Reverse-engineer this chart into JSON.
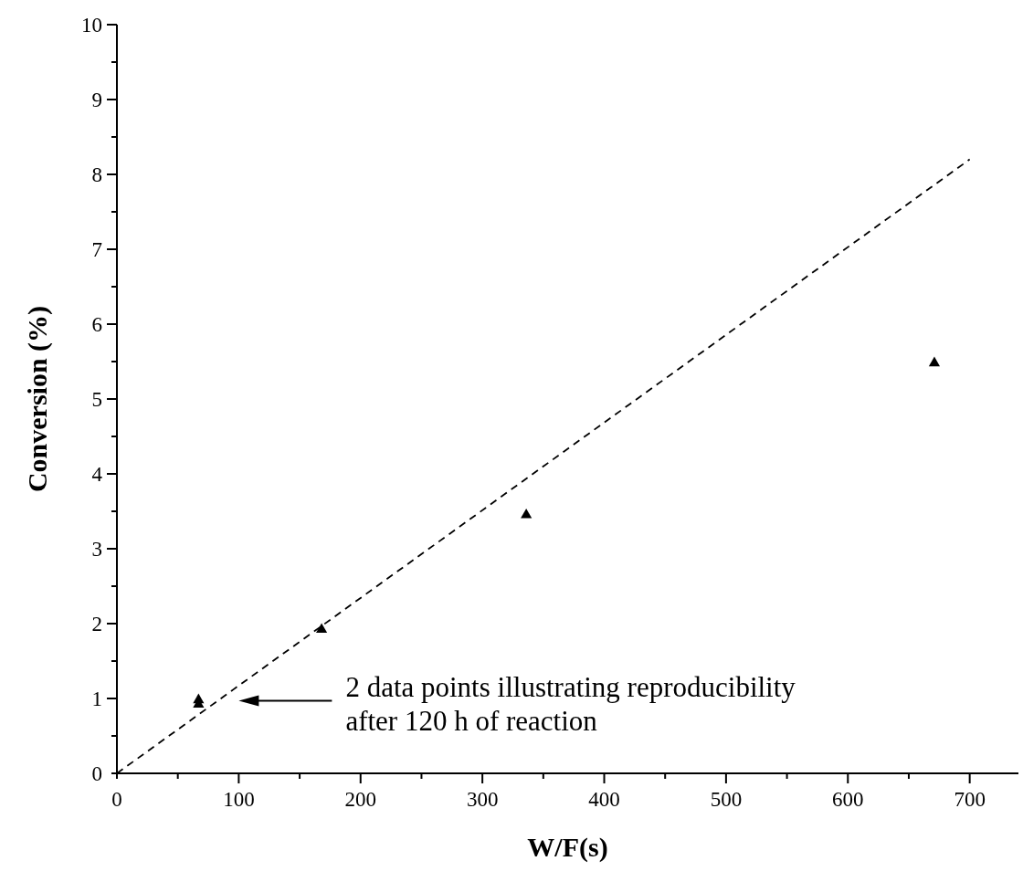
{
  "chart_data": {
    "type": "scatter",
    "xlabel": "W/F(s)",
    "ylabel": "Conversion (%)",
    "xlim": [
      0,
      740
    ],
    "ylim": [
      0,
      10
    ],
    "xticks": [
      0,
      {
        "value": 50,
        "label": null
      },
      100,
      {
        "value": 150,
        "label": null
      },
      200,
      {
        "value": 250,
        "label": null
      },
      300,
      {
        "value": 350,
        "label": null
      },
      400,
      {
        "value": 450,
        "label": null
      },
      500,
      {
        "value": 550,
        "label": null
      },
      600,
      {
        "value": 650,
        "label": null
      },
      700
    ],
    "yticks": [
      0,
      {
        "value": 0.5,
        "label": null
      },
      1,
      {
        "value": 1.5,
        "label": null
      },
      2,
      {
        "value": 2.5,
        "label": null
      },
      3,
      {
        "value": 3.5,
        "label": null
      },
      4,
      {
        "value": 4.5,
        "label": null
      },
      5,
      {
        "value": 5.5,
        "label": null
      },
      6,
      {
        "value": 6.5,
        "label": null
      },
      7,
      {
        "value": 7.5,
        "label": null
      },
      8,
      {
        "value": 8.5,
        "label": null
      },
      9,
      {
        "value": 9.5,
        "label": null
      },
      10
    ],
    "grid": false,
    "legend": false,
    "marker": "triangle",
    "series": [
      {
        "color": "#000000",
        "x": [
          67,
          67,
          168,
          336,
          671
        ],
        "values": [
          0.98,
          0.92,
          1.92,
          3.45,
          5.48
        ]
      },
      {
        "type": "line",
        "color": "#000000",
        "x": [
          0,
          700
        ],
        "values": [
          0,
          8.2
        ],
        "marker": "none",
        "line_style": "dashed"
      }
    ],
    "annotations": [
      "2 data points illustrating reproducibility\nafter 120 h of reaction"
    ]
  }
}
